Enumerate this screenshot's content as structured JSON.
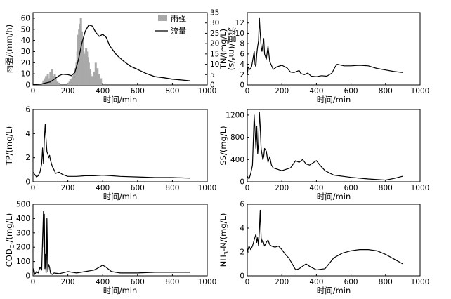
{
  "chart_data": [
    {
      "id": "rain_flow",
      "type": "bar+line",
      "xlabel": "时间/min",
      "ylabel": "雨强/(mm/h)",
      "ylabel_right": "流量/(m³/s)",
      "xlim": [
        0,
        1000
      ],
      "xticks": [
        0,
        200,
        400,
        600,
        800,
        1000
      ],
      "ylim": [
        0,
        65
      ],
      "yticks": [
        0,
        10,
        20,
        30,
        40,
        50,
        60
      ],
      "y2lim": [
        0,
        35
      ],
      "y2ticks": [
        0,
        5,
        10,
        15,
        20,
        25,
        30,
        35
      ],
      "legend": {
        "position": "top-right",
        "entries": [
          {
            "label": "雨强",
            "kind": "bar"
          },
          {
            "label": "流量",
            "kind": "line"
          }
        ]
      },
      "rain_bars": {
        "x": [
          60,
          70,
          75,
          85,
          95,
          100,
          105,
          110,
          115,
          120,
          125,
          130,
          140,
          150,
          200,
          210,
          215,
          220,
          225,
          230,
          235,
          240,
          245,
          250,
          255,
          260,
          265,
          270,
          275,
          280,
          285,
          290,
          295,
          300,
          305,
          310,
          315,
          320,
          325,
          330,
          340,
          350,
          360,
          370,
          380,
          390
        ],
        "values": [
          4,
          6,
          8,
          10,
          6,
          12,
          5,
          14,
          8,
          6,
          10,
          5,
          3,
          2,
          2,
          3,
          5,
          4,
          6,
          8,
          10,
          12,
          15,
          20,
          30,
          45,
          50,
          55,
          60,
          48,
          40,
          30,
          22,
          28,
          33,
          30,
          25,
          20,
          14,
          10,
          8,
          12,
          20,
          15,
          10,
          6
        ]
      },
      "flow_series": {
        "name": "流量",
        "x": [
          0,
          50,
          100,
          150,
          170,
          200,
          220,
          240,
          260,
          280,
          300,
          320,
          340,
          360,
          380,
          400,
          420,
          440,
          480,
          520,
          560,
          600,
          650,
          700,
          750,
          800,
          850,
          900
        ],
        "values": [
          0.3,
          0.5,
          1.5,
          4.5,
          5.2,
          5.0,
          4.5,
          6,
          12,
          20,
          26,
          29,
          28.5,
          25.5,
          23.5,
          24.5,
          23,
          19,
          14.5,
          11.5,
          9,
          7.5,
          5.5,
          4,
          3.5,
          2.8,
          2.4,
          2.0
        ]
      }
    },
    {
      "id": "tn",
      "type": "line",
      "xlabel": "时间/min",
      "ylabel": "TN/(mg/L)",
      "xlim": [
        0,
        1000
      ],
      "xticks": [
        0,
        200,
        400,
        600,
        800,
        1000
      ],
      "ylim": [
        0,
        14
      ],
      "yticks": [
        0,
        2,
        4,
        6,
        8,
        10,
        12
      ],
      "series": [
        {
          "x": [
            0,
            5,
            15,
            25,
            30,
            40,
            45,
            50,
            55,
            60,
            65,
            70,
            75,
            80,
            85,
            95,
            100,
            110,
            120,
            130,
            150,
            170,
            200,
            230,
            250,
            270,
            300,
            310,
            330,
            350,
            370,
            400,
            430,
            460,
            490,
            510,
            520,
            560,
            600,
            650,
            700,
            750,
            800,
            850,
            900
          ],
          "values": [
            2,
            3.5,
            3,
            3.5,
            4.5,
            6.5,
            4,
            3.5,
            6,
            7.5,
            8.5,
            13,
            10,
            7.5,
            6.5,
            9,
            6,
            5,
            7.5,
            4.5,
            3,
            3.5,
            3.8,
            3.3,
            2.5,
            2.4,
            2.8,
            2.2,
            2,
            2.3,
            1.7,
            1.6,
            1.8,
            1.7,
            2.3,
            3.6,
            4,
            3.7,
            3.7,
            3.8,
            3.7,
            3.2,
            2.9,
            2.6,
            2.4
          ]
        }
      ]
    },
    {
      "id": "tp",
      "type": "line",
      "xlabel": "时间/min",
      "ylabel": "TP/(mg/L)",
      "xlim": [
        0,
        1000
      ],
      "xticks": [
        0,
        200,
        400,
        600,
        800,
        1000
      ],
      "ylim": [
        0,
        6
      ],
      "yticks": [
        0,
        2,
        4,
        6
      ],
      "series": [
        {
          "x": [
            0,
            10,
            20,
            30,
            40,
            50,
            55,
            60,
            65,
            70,
            75,
            80,
            85,
            90,
            95,
            100,
            110,
            120,
            130,
            150,
            170,
            200,
            250,
            300,
            350,
            400,
            450,
            500,
            600,
            700,
            800,
            900
          ],
          "values": [
            0.8,
            0.6,
            0.4,
            0.5,
            0.8,
            1.5,
            2.8,
            1.5,
            3.5,
            4.8,
            3.5,
            2.5,
            2.3,
            2.0,
            2.2,
            1.8,
            1.3,
            1.0,
            0.7,
            0.8,
            0.6,
            0.45,
            0.45,
            0.5,
            0.5,
            0.55,
            0.5,
            0.45,
            0.4,
            0.35,
            0.35,
            0.3
          ]
        }
      ]
    },
    {
      "id": "ss",
      "type": "line",
      "xlabel": "时间/min",
      "ylabel": "SS/(mg/L)",
      "xlim": [
        0,
        1000
      ],
      "xticks": [
        0,
        200,
        400,
        600,
        800,
        1000
      ],
      "ylim": [
        0,
        1300
      ],
      "yticks": [
        0,
        400,
        800,
        1200
      ],
      "series": [
        {
          "x": [
            0,
            10,
            20,
            30,
            40,
            45,
            50,
            55,
            60,
            65,
            70,
            75,
            80,
            85,
            90,
            95,
            100,
            110,
            120,
            130,
            140,
            150,
            200,
            250,
            280,
            300,
            320,
            340,
            360,
            380,
            400,
            420,
            450,
            500,
            600,
            700,
            800,
            850,
            900
          ],
          "values": [
            100,
            50,
            150,
            300,
            1200,
            900,
            600,
            1000,
            500,
            700,
            1250,
            1000,
            600,
            500,
            400,
            450,
            600,
            550,
            350,
            450,
            300,
            250,
            200,
            250,
            380,
            350,
            400,
            320,
            300,
            340,
            380,
            300,
            200,
            120,
            80,
            50,
            30,
            60,
            100
          ]
        }
      ]
    },
    {
      "id": "cod",
      "type": "line",
      "xlabel": "时间/min",
      "ylabel": "COD",
      "ylabel_sub": "Cr",
      "ylabel_suffix": "/(mg/L)",
      "xlim": [
        0,
        1000
      ],
      "xticks": [
        0,
        200,
        400,
        600,
        800,
        1000
      ],
      "ylim": [
        0,
        500
      ],
      "yticks": [
        0,
        100,
        200,
        300,
        400,
        500
      ],
      "series": [
        {
          "x": [
            0,
            5,
            10,
            20,
            30,
            40,
            50,
            55,
            60,
            62,
            65,
            68,
            70,
            75,
            78,
            80,
            85,
            90,
            95,
            100,
            110,
            120,
            150,
            200,
            250,
            300,
            350,
            380,
            400,
            420,
            450,
            500,
            600,
            700,
            800,
            900
          ],
          "values": [
            20,
            50,
            10,
            30,
            20,
            60,
            40,
            250,
            450,
            200,
            430,
            50,
            150,
            20,
            120,
            400,
            30,
            80,
            60,
            20,
            10,
            20,
            15,
            30,
            20,
            30,
            40,
            60,
            75,
            60,
            30,
            20,
            20,
            25,
            25,
            25
          ]
        }
      ]
    },
    {
      "id": "nh3n",
      "type": "line",
      "xlabel": "时间/min",
      "ylabel": "NH",
      "ylabel_sub": "3",
      "ylabel_suffix": "-N/(mg/L)",
      "xlim": [
        0,
        1000
      ],
      "xticks": [
        0,
        200,
        400,
        600,
        800,
        1000
      ],
      "ylim": [
        0,
        6
      ],
      "yticks": [
        0,
        2,
        4,
        6
      ],
      "series": [
        {
          "x": [
            0,
            10,
            20,
            30,
            40,
            50,
            55,
            60,
            65,
            70,
            75,
            80,
            85,
            90,
            100,
            110,
            120,
            130,
            140,
            160,
            180,
            200,
            220,
            240,
            260,
            280,
            300,
            320,
            340,
            360,
            400,
            450,
            500,
            550,
            600,
            650,
            700,
            750,
            800,
            850,
            900
          ],
          "values": [
            2,
            2.5,
            2.2,
            2.5,
            3.0,
            3.5,
            2.8,
            3.2,
            2.5,
            3.8,
            5.5,
            3.2,
            2.8,
            3.0,
            2.5,
            2.8,
            3.0,
            2.6,
            2.5,
            2.4,
            2.5,
            2.2,
            1.8,
            1.5,
            1.0,
            0.5,
            0.6,
            0.8,
            1.0,
            0.8,
            0.5,
            0.6,
            1.5,
            1.9,
            2.1,
            2.2,
            2.2,
            2.1,
            1.8,
            1.4,
            1.0
          ]
        }
      ]
    }
  ]
}
